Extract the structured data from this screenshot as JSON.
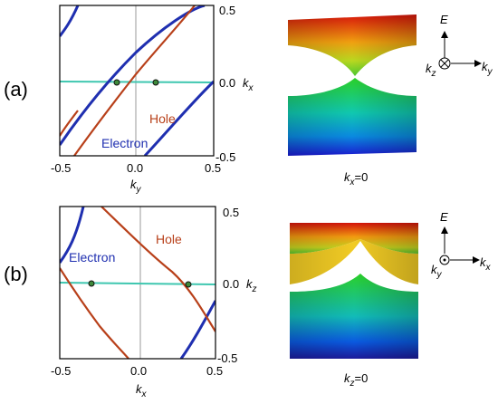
{
  "panels": [
    {
      "label": "(a)",
      "x_ticks": [
        "-0.5",
        "0.0",
        "0.5"
      ],
      "y_ticks": [
        "0.5",
        "0.0",
        "-0.5"
      ],
      "x_axis_label": "k",
      "x_axis_sub": "y",
      "y_axis_label": "k",
      "y_axis_sub": "x",
      "electron_label": "Electron",
      "hole_label": "Hole",
      "band_caption_k": "k",
      "band_caption_sub": "x",
      "band_caption_val": "=0",
      "axes3d": {
        "E": "E",
        "into": "k",
        "into_sub": "z",
        "right": "k",
        "right_sub": "y"
      }
    },
    {
      "label": "(b)",
      "x_ticks": [
        "-0.5",
        "0.0",
        "0.5"
      ],
      "y_ticks": [
        "0.5",
        "0.0",
        "-0.5"
      ],
      "x_axis_label": "k",
      "x_axis_sub": "x",
      "y_axis_label": "k",
      "y_axis_sub": "z",
      "electron_label": "Electron",
      "hole_label": "Hole",
      "band_caption_k": "k",
      "band_caption_sub": "z",
      "band_caption_val": "=0",
      "axes3d": {
        "E": "E",
        "into": "k",
        "into_sub": "y",
        "right": "k",
        "right_sub": "x"
      }
    }
  ],
  "colors": {
    "electron": "#1f2fb0",
    "hole": "#b8401a",
    "fermi": "#3fc7b0",
    "node_fill": "#3e8a3a",
    "band_red": "#e8200a",
    "band_blue": "#1a2fe0",
    "band_green": "#2ec83a"
  }
}
